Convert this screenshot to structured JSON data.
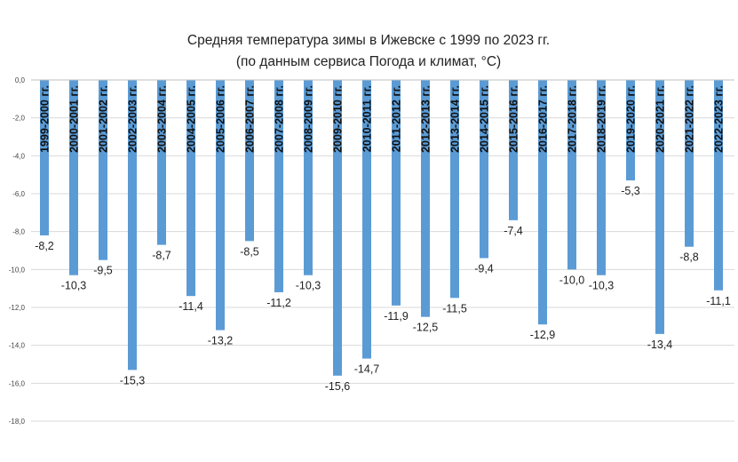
{
  "chart_data": {
    "type": "bar",
    "title": [
      "Средняя температура зимы в Ижевске с 1999 по 2023 гг.",
      "(по данным сервиса Погода и климат, °C)"
    ],
    "xlabel": "",
    "ylabel": "",
    "ylim": [
      -18,
      0
    ],
    "ytick_step": 2,
    "ytick_labels": [
      "0,0",
      "-2,0",
      "-4,0",
      "-6,0",
      "-8,0",
      "-10,0",
      "-12,0",
      "-14,0",
      "-16,0",
      "-18,0"
    ],
    "grid": true,
    "legend": "none",
    "bar_color": "#5b9bd5",
    "categories": [
      "1999-2000 гг.",
      "2000-2001 гг.",
      "2001-2002 гг.",
      "2002-2003 гг.",
      "2003-2004 гг.",
      "2004-2005 гг.",
      "2005-2006 гг.",
      "2006-2007 гг.",
      "2007-2008 гг.",
      "2008-2009 гг.",
      "2009-2010 гг.",
      "2010-2011 гг.",
      "2011-2012 гг.",
      "2012-2013 гг.",
      "2013-2014 гг.",
      "2014-2015 гг.",
      "2015-2016 гг.",
      "2016-2017 гг.",
      "2017-2018 гг.",
      "2018-2019 гг.",
      "2019-2020 гг.",
      "2020-2021 гг.",
      "2021-2022 гг.",
      "2022-2023 гг."
    ],
    "values": [
      -8.2,
      -10.3,
      -9.5,
      -15.3,
      -8.7,
      -11.4,
      -13.2,
      -8.5,
      -11.2,
      -10.3,
      -15.6,
      -14.7,
      -11.9,
      -12.5,
      -11.5,
      -9.4,
      -7.4,
      -12.9,
      -10.0,
      -10.3,
      -5.3,
      -13.4,
      -8.8,
      -11.1
    ],
    "value_labels": [
      "-8,2",
      "-10,3",
      "-9,5",
      "-15,3",
      "-8,7",
      "-11,4",
      "-13,2",
      "-8,5",
      "-11,2",
      "-10,3",
      "-15,6",
      "-14,7",
      "-11,9",
      "-12,5",
      "-11,5",
      "-9,4",
      "-7,4",
      "-12,9",
      "-10,0",
      "-10,3",
      "-5,3",
      "-13,4",
      "-8,8",
      "-11,1"
    ]
  }
}
